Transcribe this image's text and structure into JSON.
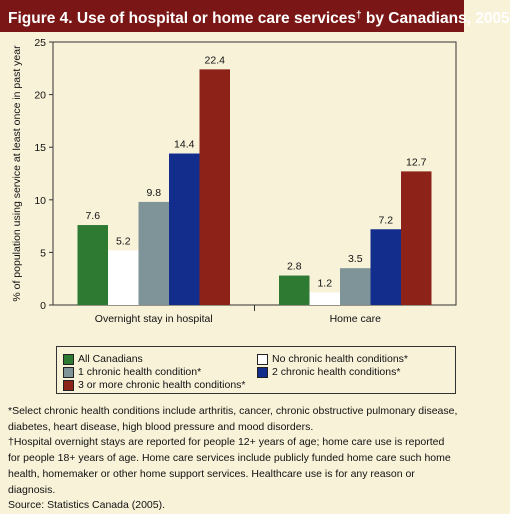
{
  "title": {
    "prefix": "Figure 4. Use of hospital or home care services",
    "marker": "†",
    "suffix": " by Canadians, 2005"
  },
  "colors": {
    "header_background": "#7a1716",
    "page_background": "#f8f2d9",
    "All Canadians": "#2e7a32",
    "No chronic health conditions*": "#ffffff",
    "1 chronic health condition*": "#7f9498",
    "2 chronic health conditions*": "#132d8c",
    "3 or more chronic health conditions*": "#8c2218"
  },
  "chart_data": {
    "type": "bar",
    "title": "Figure 4. Use of hospital or home care services† by Canadians, 2005",
    "ylabel": "% of population using service at least once in past year",
    "xlabel": "",
    "ylim": [
      0,
      25
    ],
    "yticks": [
      0,
      5,
      10,
      15,
      20,
      25
    ],
    "categories": [
      "Overnight stay in hospital",
      "Home care"
    ],
    "series": [
      {
        "name": "All Canadians",
        "values": [
          7.6,
          2.8
        ]
      },
      {
        "name": "No chronic health conditions*",
        "values": [
          5.2,
          1.2
        ]
      },
      {
        "name": "1 chronic health condition*",
        "values": [
          9.8,
          3.5
        ]
      },
      {
        "name": "2 chronic health conditions*",
        "values": [
          14.4,
          7.2
        ]
      },
      {
        "name": "3 or more chronic health conditions*",
        "values": [
          22.4,
          12.7
        ]
      }
    ],
    "data_labels": [
      [
        "7.6",
        "2.8"
      ],
      [
        "5.2",
        "1.2"
      ],
      [
        "9.8",
        "3.5"
      ],
      [
        "14.4",
        "7.2"
      ],
      [
        "22.4",
        "12.7"
      ]
    ],
    "grid": false,
    "legend_position": "bottom"
  },
  "legend": {
    "items": [
      "All Canadians",
      "1 chronic health condition*",
      "3 or more chronic health conditions*",
      "No chronic health conditions*",
      "2 chronic health conditions*"
    ]
  },
  "notes": {
    "line1": "*Select chronic health conditions include arthritis, cancer, chronic obstructive pulmonary disease, diabetes, heart disease, high blood pressure and mood disorders.",
    "line2": "†Hospital overnight stays are reported for people 12+ years of age; home care use is reported for people 18+ years of age. Home care services include publicly funded home care such home health, homemaker or other home support services. Healthcare use is for any reason or diagnosis.",
    "line3": "Source: Statistics Canada (2005)."
  }
}
